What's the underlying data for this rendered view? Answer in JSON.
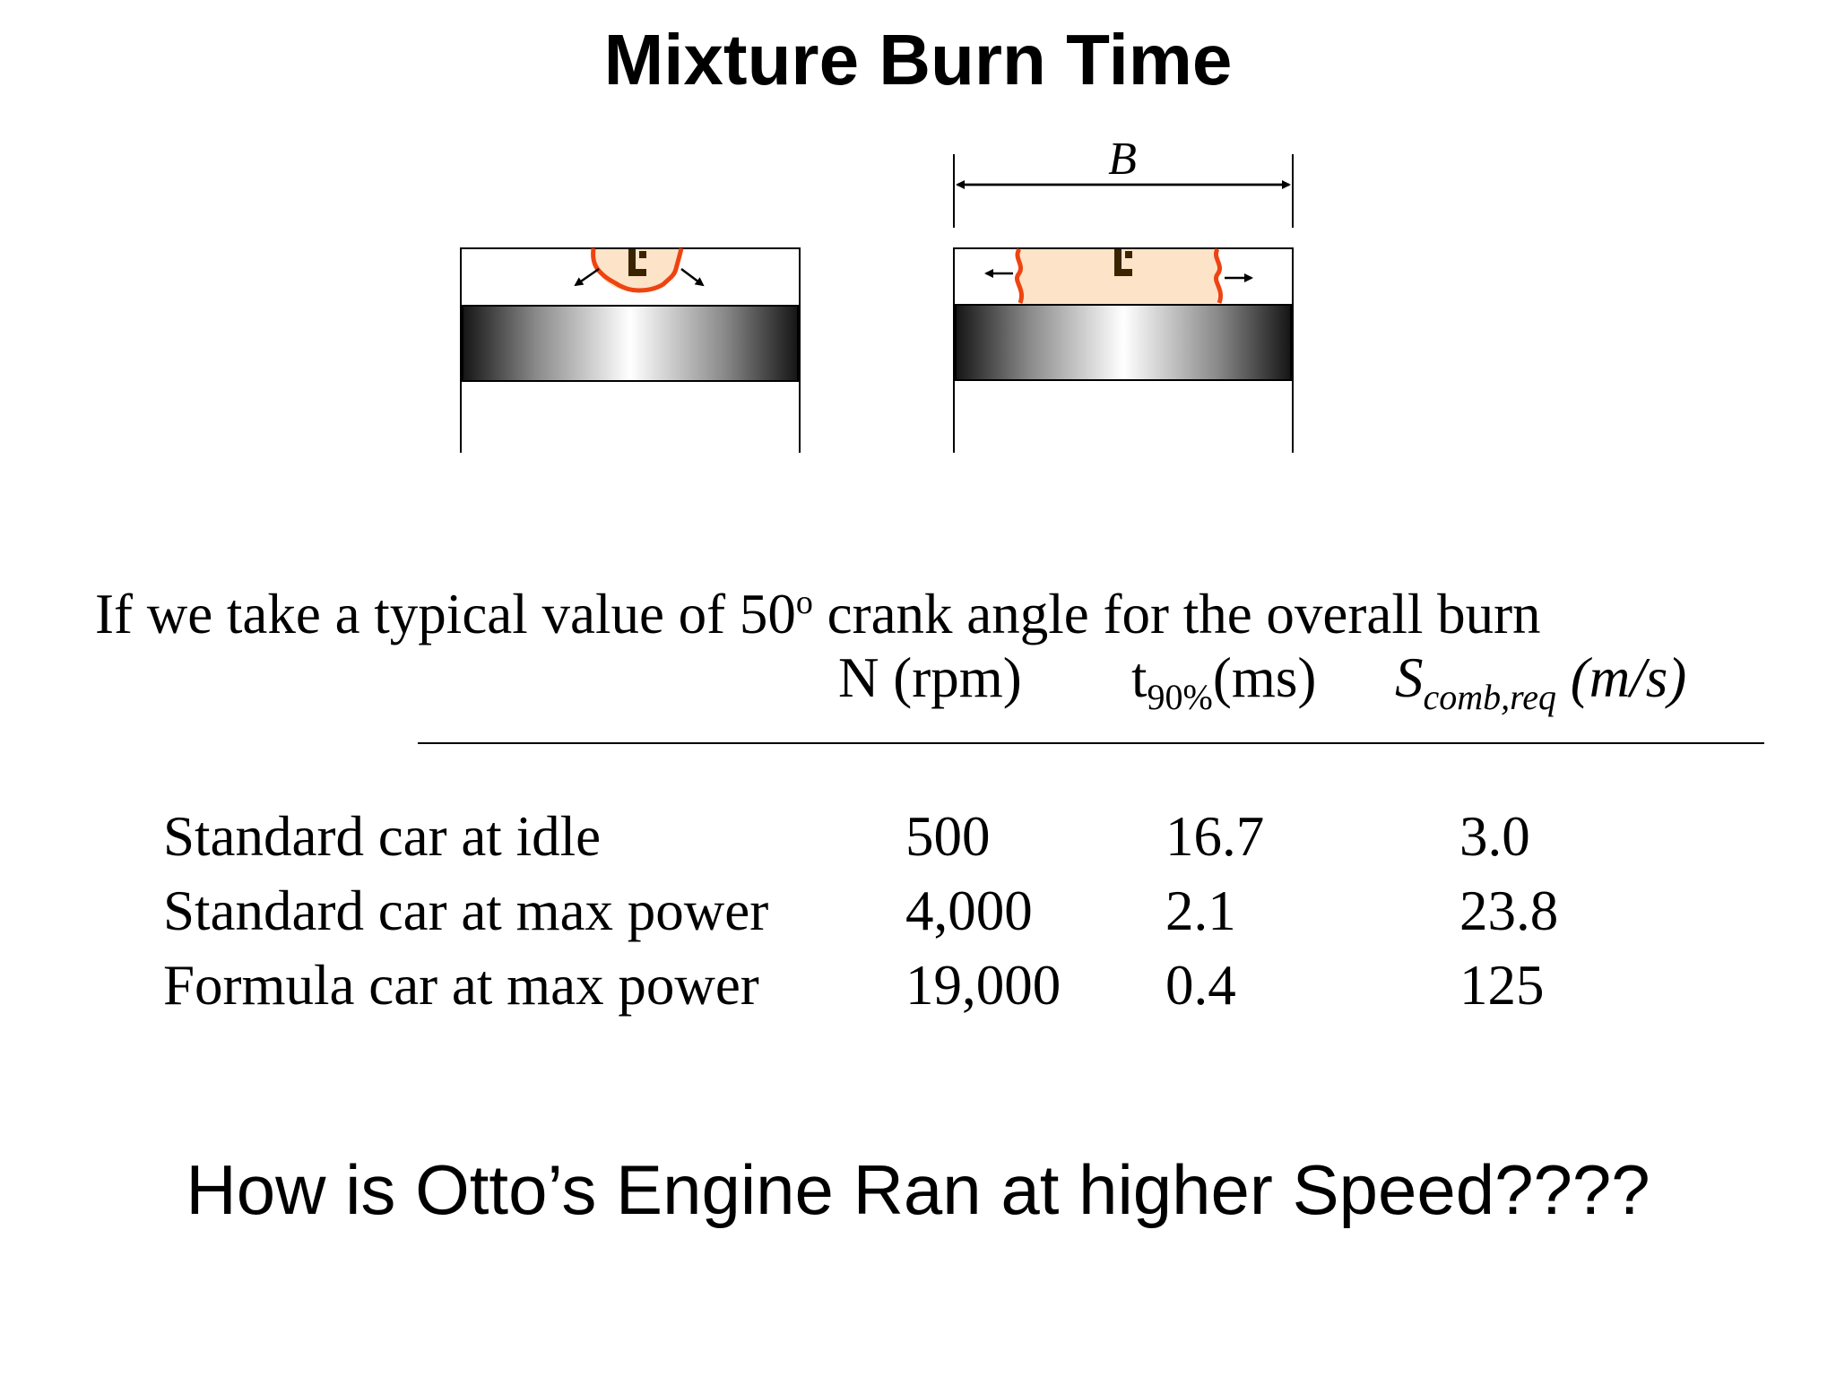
{
  "title": "Mixture Burn Time",
  "diagram": {
    "bore_label": "B",
    "flame_color": "#ee4411",
    "burned_gas_color": "#fde3c8"
  },
  "intro": {
    "text_before": "If we take a typical value of 50",
    "superscript": "o",
    "text_after": " crank angle  for the overall burn"
  },
  "table": {
    "headers": {
      "n": "N (rpm)",
      "t_base": "t",
      "t_sub": "90%",
      "t_unit": "(ms)",
      "s_base": "S",
      "s_sub": "comb,req",
      "s_unit": " (m/s)"
    },
    "rows": [
      {
        "label": "Standard car at idle",
        "n": "500",
        "t90": "16.7",
        "s": "3.0"
      },
      {
        "label": "Standard car at max power",
        "n": "4,000",
        "t90": "2.1",
        "s": "23.8"
      },
      {
        "label": "Formula car at max power",
        "n": "19,000",
        "t90": "0.4",
        "s": "125"
      }
    ]
  },
  "question": "How is Otto’s Engine Ran at higher Speed????"
}
